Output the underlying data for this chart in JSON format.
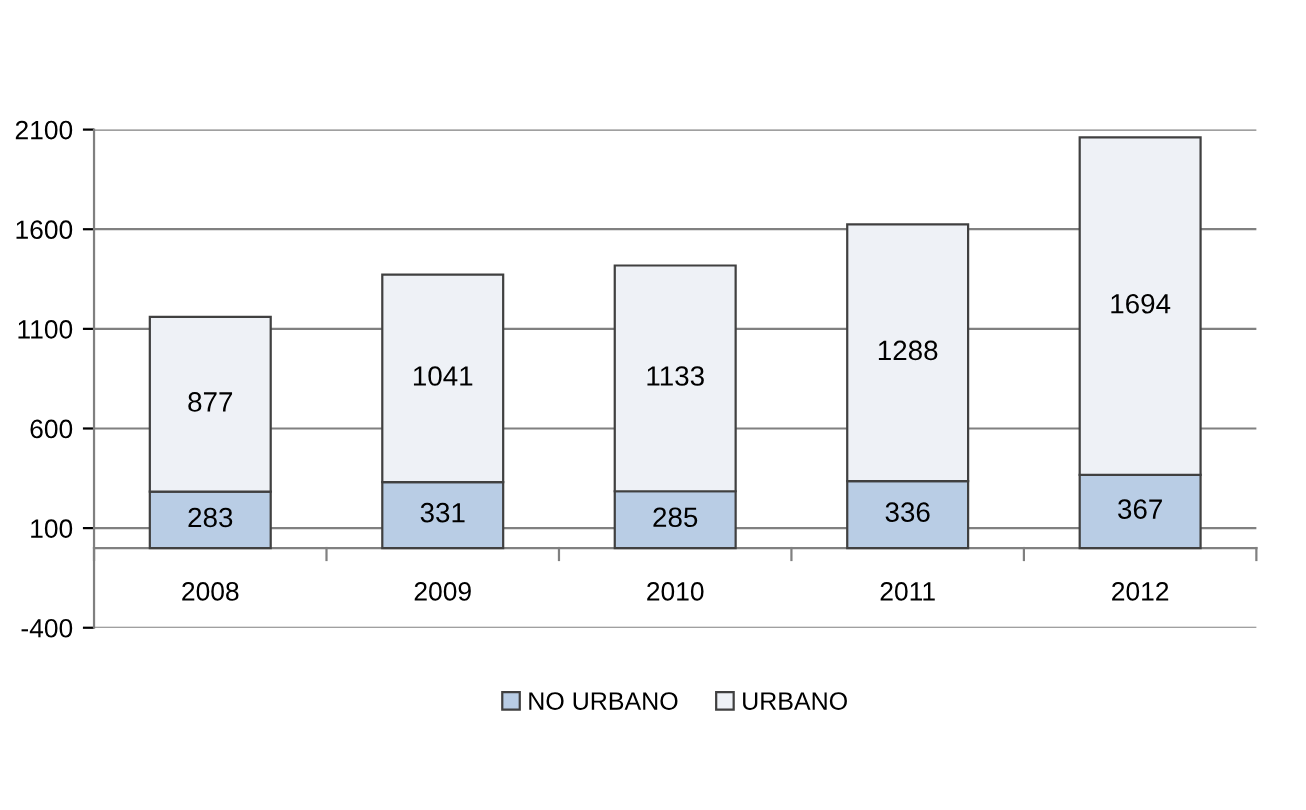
{
  "chart_data": {
    "type": "bar",
    "stacked": true,
    "categories": [
      "2008",
      "2009",
      "2010",
      "2011",
      "2012"
    ],
    "series": [
      {
        "name": "NO URBANO",
        "color": "#b9cde5",
        "values": [
          283,
          331,
          285,
          336,
          367
        ]
      },
      {
        "name": "URBANO",
        "color": "#eef1f6",
        "values": [
          877,
          1041,
          1133,
          1288,
          1694
        ]
      }
    ],
    "ylim": [
      -400,
      2100
    ],
    "yticks": [
      -400,
      100,
      600,
      1100,
      1600,
      2100
    ],
    "grid": "y",
    "legend": "bottom",
    "data_labels": true
  }
}
